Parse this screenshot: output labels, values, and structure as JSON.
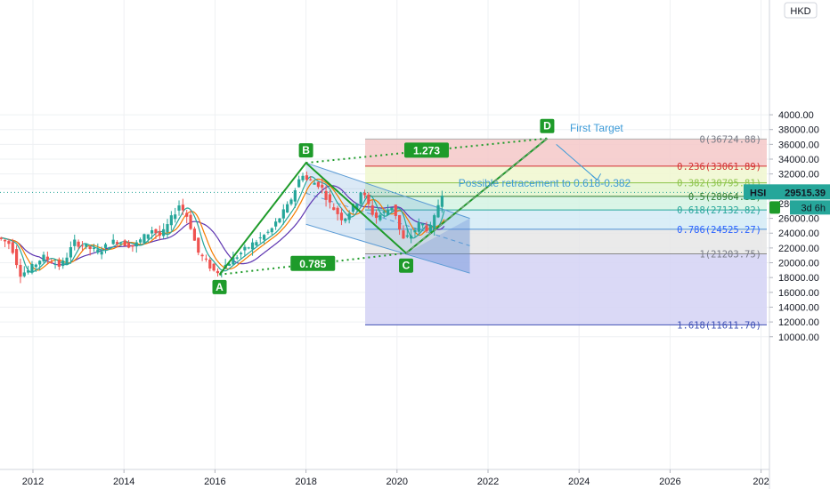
{
  "chart_data": {
    "type": "candlestick",
    "symbol": "HSI",
    "currency": "HKD",
    "last_price": "29515.39",
    "countdown": "3d 6h",
    "y_axis_labels": [
      "4000.00",
      "38000.00",
      "36000.00",
      "34000.00",
      "32000.00",
      "30000.00",
      "28000.00",
      "26000.00",
      "24000.00",
      "22000.00",
      "20000.00",
      "18000.00",
      "16000.00",
      "14000.00",
      "12000.00",
      "10000.00"
    ],
    "x_axis_labels": [
      "2012",
      "2014",
      "2016",
      "2018",
      "2020",
      "2022",
      "2024",
      "2026",
      "202"
    ],
    "ylim": [
      8800,
      40500
    ],
    "xlim": [
      2011.3,
      2027.8
    ],
    "price_series_approx": [
      [
        2011.3,
        23400
      ],
      [
        2011.6,
        22500
      ],
      [
        2011.8,
        18500
      ],
      [
        2012.0,
        19000
      ],
      [
        2012.3,
        20800
      ],
      [
        2012.7,
        19500
      ],
      [
        2013.0,
        22800
      ],
      [
        2013.5,
        21500
      ],
      [
        2013.9,
        23000
      ],
      [
        2014.3,
        22200
      ],
      [
        2014.7,
        24500
      ],
      [
        2014.9,
        23500
      ],
      [
        2015.3,
        27900
      ],
      [
        2015.5,
        26000
      ],
      [
        2015.7,
        21500
      ],
      [
        2016.1,
        18600
      ],
      [
        2016.5,
        20600
      ],
      [
        2016.9,
        22500
      ],
      [
        2017.3,
        24300
      ],
      [
        2017.7,
        27800
      ],
      [
        2018.0,
        32200
      ],
      [
        2018.1,
        31200
      ],
      [
        2018.4,
        30500
      ],
      [
        2018.6,
        28000
      ],
      [
        2018.9,
        25800
      ],
      [
        2019.2,
        28200
      ],
      [
        2019.3,
        29800
      ],
      [
        2019.6,
        26000
      ],
      [
        2019.8,
        26800
      ],
      [
        2020.0,
        27800
      ],
      [
        2020.2,
        23000
      ],
      [
        2020.4,
        23800
      ],
      [
        2020.6,
        25500
      ],
      [
        2020.8,
        24200
      ],
      [
        2020.95,
        26800
      ],
      [
        2021.05,
        29500
      ]
    ],
    "pattern_points": [
      {
        "label": "A",
        "x": 2016.1,
        "y": 18400
      },
      {
        "label": "B",
        "x": 2018.0,
        "y": 33500
      },
      {
        "label": "C",
        "x": 2020.2,
        "y": 21300
      },
      {
        "label": "D",
        "x": 2023.3,
        "y": 36800
      }
    ],
    "ratios": [
      {
        "label": "1.273",
        "from": "B",
        "to": "D"
      },
      {
        "label": "0.785",
        "from": "A",
        "to": "C"
      }
    ],
    "fib_levels": [
      {
        "label": "0(36724.88)",
        "value": 36724.88,
        "fill": "#f5c8c8",
        "line": "#b0b0b0",
        "text": "#787b86"
      },
      {
        "label": "0.236(33061.89)",
        "value": 33061.89,
        "fill": "#f0f7cf",
        "line": "#d32f2f",
        "text": "#d32f2f"
      },
      {
        "label": "0.382(30795.81)",
        "value": 30795.81,
        "fill": "#e3f6cf",
        "line": "#8bc34a",
        "text": "#8bc34a"
      },
      {
        "label": "0.5(28964.32)",
        "value": 28964.32,
        "fill": "#d4f3e3",
        "line": "#2e7d32",
        "text": "#2e7d32"
      },
      {
        "label": "0.618(27132.82)",
        "value": 27132.82,
        "fill": "#d3ebf6",
        "line": "#26a69a",
        "text": "#26a69a"
      },
      {
        "label": "0.786(24525.27)",
        "value": 24525.27,
        "fill": "#e6e6e6",
        "line": "#4c8fd6",
        "text": "#2962ff"
      },
      {
        "label": "1(21203.75)",
        "value": 21203.75,
        "fill": "#d4d2f5",
        "line": "#888888",
        "text": "#787b86"
      },
      {
        "label": "1.618(11611.70)",
        "value": 11611.7,
        "fill": "#f5c8c8",
        "line": "#3f51b5",
        "text": "#3f51b5"
      }
    ],
    "fib_start_x": 2019.3,
    "annotations": [
      "First Target",
      "Possible retracement to 0.618-0.382"
    ],
    "colors": {
      "pattern": "#1e9b2a",
      "ma_orange": "#f57c00",
      "ma_purple": "#5e35b1",
      "ma_teal": "#26a69a",
      "channel": "#5b9bd5",
      "price_label": "#26a69a",
      "annotation": "#3d9bd8"
    }
  }
}
